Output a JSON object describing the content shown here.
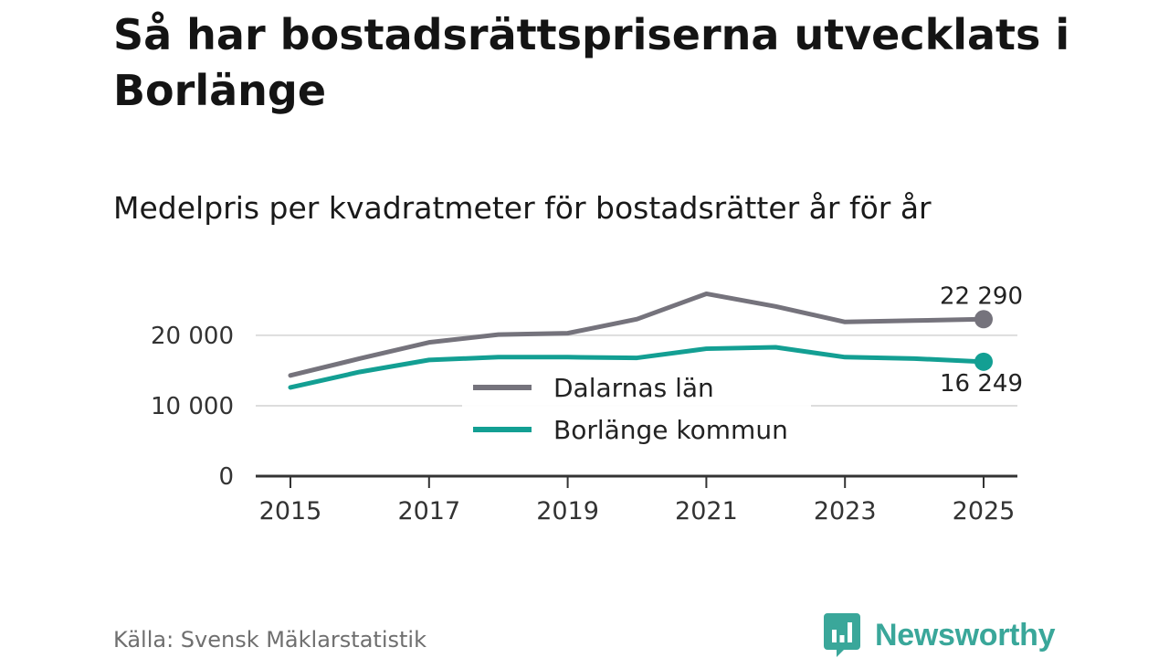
{
  "title": "Så har bostadsrättspriserna utvecklats i Borlänge",
  "subtitle": "Medelpris per kvadratmeter för bostadsrätter år för år",
  "source": "Källa: Svensk Mäklarstatistik",
  "brand": "Newsworthy",
  "colors": {
    "dalarna": "#75737c",
    "borlange": "#139f93",
    "grid": "#dddddd",
    "axis": "#333333",
    "brand": "#3aa79a"
  },
  "chart_data": {
    "type": "line",
    "title": "Medelpris per kvadratmeter för bostadsrätter år för år",
    "xlabel": "",
    "ylabel": "",
    "x": [
      2015,
      2016,
      2017,
      2018,
      2019,
      2020,
      2021,
      2022,
      2023,
      2024,
      2025
    ],
    "xticks": [
      "2015",
      "2017",
      "2019",
      "2021",
      "2023",
      "2025"
    ],
    "yticks": [
      {
        "value": 0,
        "label": "0"
      },
      {
        "value": 10000,
        "label": "10 000"
      },
      {
        "value": 20000,
        "label": "20 000"
      }
    ],
    "ylim": [
      0,
      27000
    ],
    "xlim": [
      2015,
      2025
    ],
    "grid": true,
    "legend_position": "center",
    "series": [
      {
        "name": "Dalarnas län",
        "key": "dalarna",
        "values": [
          14300,
          16700,
          19000,
          20100,
          20300,
          22300,
          25900,
          24100,
          21900,
          22100,
          22290
        ],
        "end_label": "22 290"
      },
      {
        "name": "Borlänge kommun",
        "key": "borlange",
        "values": [
          12600,
          14800,
          16500,
          16900,
          16900,
          16800,
          18100,
          18300,
          16900,
          16700,
          16249
        ],
        "end_label": "16 249"
      }
    ]
  }
}
